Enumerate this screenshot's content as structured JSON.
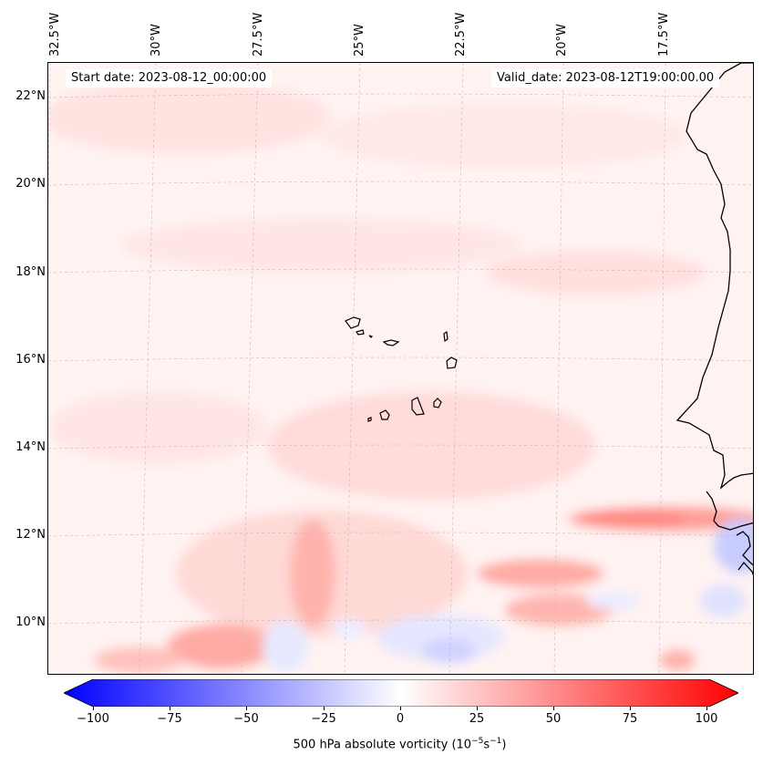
{
  "header": {
    "start_date": "Start date: 2023-08-12_00:00:00",
    "valid_date": "Valid_date: 2023-08-12T19:00:00.00"
  },
  "axes": {
    "lon_labels": [
      "32.5°W",
      "30°W",
      "27.5°W",
      "25°W",
      "22.5°W",
      "20°W",
      "17.5°W"
    ],
    "lat_labels": [
      "22°N",
      "20°N",
      "18°N",
      "16°N",
      "14°N",
      "12°N",
      "10°N"
    ]
  },
  "colorbar": {
    "ticks": [
      "−100",
      "−75",
      "−50",
      "−25",
      "0",
      "25",
      "50",
      "75",
      "100"
    ],
    "label_prefix": "500 hPa absolute vorticity (10",
    "label_exp1": "−5",
    "label_mid": "s",
    "label_exp2": "−1",
    "label_suffix": ")",
    "min": -100,
    "max": 100,
    "colors": {
      "negative": "#0000ff",
      "zero": "#ffffff",
      "positive": "#ff0000"
    }
  }
}
